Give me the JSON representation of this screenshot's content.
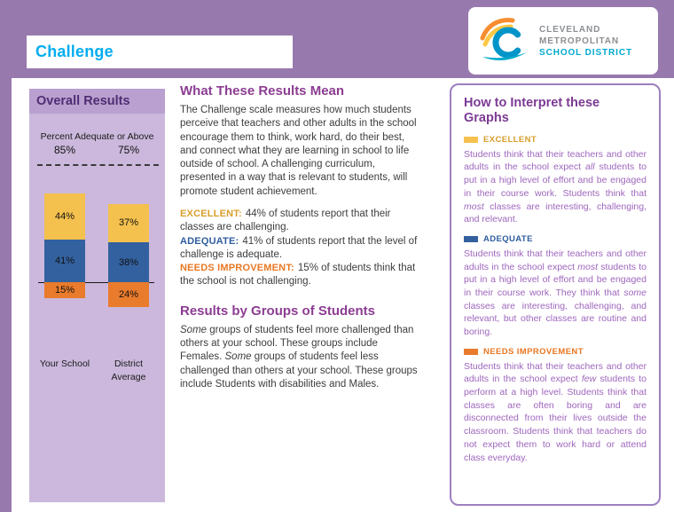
{
  "header": {
    "title": "Challenge"
  },
  "logo": {
    "line1": "CLEVELAND",
    "line2": "METROPOLITAN",
    "line3": "SCHOOL DISTRICT"
  },
  "colors": {
    "header_purple": "#9879AE",
    "panel_lavender": "#CBB8DC",
    "accent_cyan": "#00ADEF",
    "gold": "#F5C14E",
    "blue": "#33619F",
    "orange": "#E97B2C",
    "heading_purple": "#8C3D92",
    "interpret_text": "#9E66BD",
    "logo_teal": "#00A9CE"
  },
  "overall": {
    "title": "Overall Results",
    "subtitle": "Percent Adequate or Above"
  },
  "chart_data": {
    "type": "bar",
    "stacked": true,
    "categories": [
      "Your School",
      "District Average"
    ],
    "series": [
      {
        "name": "Excellent",
        "color": "#F5C14E",
        "values": [
          44,
          37
        ]
      },
      {
        "name": "Adequate",
        "color": "#33619F",
        "values": [
          41,
          38
        ]
      },
      {
        "name": "Needs Improvement",
        "color": "#E97B2C",
        "values": [
          15,
          24
        ]
      }
    ],
    "adequate_or_above": [
      85,
      75
    ],
    "title": "Overall Results",
    "subtitle": "Percent Adequate or Above",
    "layout": "Excellent+Adequate stacked above axis line, Needs Improvement below axis line"
  },
  "middle": {
    "heading1": "What These Results Mean",
    "para1": "The Challenge scale measures how much students perceive that teachers and other adults in the school encourage them to think, work hard, do their best, and connect what they are learning in school to life outside of school. A challenging curriculum, presented in a way that is relevant to students, will promote student achievement.",
    "levels": [
      {
        "label": "EXCELLENT:",
        "text": "44% of students report that their classes are challenging."
      },
      {
        "label": "ADEQUATE:",
        "text": "41% of students report that the level of challenge is adequate."
      },
      {
        "label": "NEEDS IMPROVEMENT:",
        "text": "15% of students think that the school is not challenging."
      }
    ],
    "heading2": "Results by Groups of Students",
    "para2": [
      {
        "t": "Some",
        "i": true
      },
      {
        "t": " groups of students feel more challenged than others at your school. These groups include Females. "
      },
      {
        "t": "Some",
        "i": true
      },
      {
        "t": " groups of students feel less challenged than others at your school. These groups include Students with disabilities and Males."
      }
    ]
  },
  "interpret": {
    "heading": "How to Interpret these Graphs",
    "sections": [
      {
        "label": "EXCELLENT",
        "rich": [
          {
            "t": "Students think that their teachers and other adults in the school expect "
          },
          {
            "t": "all",
            "i": true
          },
          {
            "t": " students to put in a high level of effort and be engaged in their course work. Students think that "
          },
          {
            "t": "most",
            "i": true
          },
          {
            "t": " classes are interesting, challenging, and relevant."
          }
        ]
      },
      {
        "label": "ADEQUATE",
        "rich": [
          {
            "t": "Students think that their teachers and other adults in the school expect "
          },
          {
            "t": "most",
            "i": true
          },
          {
            "t": " students to put in a high level of effort and be engaged in their course work. They think that "
          },
          {
            "t": "some",
            "i": true
          },
          {
            "t": " classes are interesting, challenging, and relevant, but other classes are routine and boring."
          }
        ]
      },
      {
        "label": "NEEDS IMPROVEMENT",
        "rich": [
          {
            "t": "Students think that their teachers and other adults in the school expect "
          },
          {
            "t": "few",
            "i": true
          },
          {
            "t": " students to perform at a high level. Students think that classes are often boring and are disconnected from their lives outside the classroom. Students think that teachers do not expect them to work hard or attend class everyday."
          }
        ]
      }
    ]
  }
}
